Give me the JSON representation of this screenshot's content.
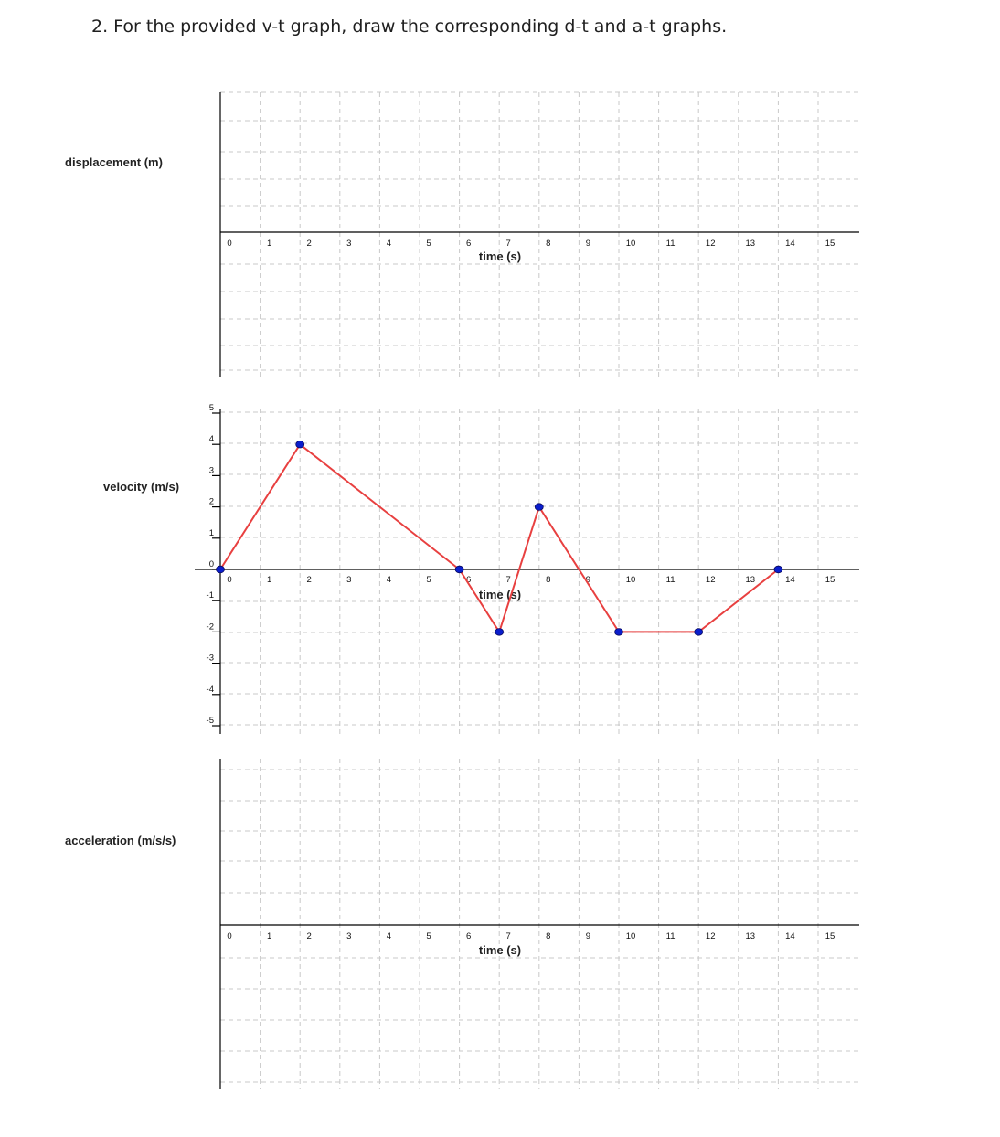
{
  "question": "2.   For the provided v-t graph, draw the corresponding d-t and a-t graphs.",
  "colors": {
    "line": "#e84040",
    "point": "#0a1ecc",
    "point_edge": "#0a0a60",
    "grid": "#c9c9c9",
    "axis": "#000000"
  },
  "chart_data": [
    {
      "type": "line",
      "title": "",
      "ylabel": "displacement (m)",
      "xlabel": "time (s)",
      "x_ticks": [
        "0",
        "1",
        "2",
        "3",
        "4",
        "5",
        "6",
        "7",
        "8",
        "9",
        "10",
        "11",
        "12",
        "13",
        "14",
        "15"
      ],
      "xlim": [
        0,
        15
      ],
      "y_ticks": [],
      "grid": true,
      "series": []
    },
    {
      "type": "line",
      "title": "",
      "ylabel": "velocity (m/s)",
      "xlabel": "time (s)",
      "x_ticks": [
        "0",
        "1",
        "2",
        "3",
        "4",
        "5",
        "6",
        "7",
        "8",
        "9",
        "10",
        "11",
        "12",
        "13",
        "14",
        "15"
      ],
      "xlim": [
        0,
        15
      ],
      "ylim": [
        -5,
        5
      ],
      "y_ticks": [
        "5",
        "4",
        "3",
        "2",
        "1",
        "0",
        "-1",
        "-2",
        "-3",
        "-4",
        "-5"
      ],
      "grid": true,
      "series": [
        {
          "x": [
            0,
            2,
            6,
            7,
            8,
            10,
            12,
            14
          ],
          "y": [
            0,
            4,
            0,
            -2,
            2,
            -2,
            -2,
            0
          ]
        }
      ]
    },
    {
      "type": "line",
      "title": "",
      "ylabel": "acceleration (m/s/s)",
      "xlabel": "time (s)",
      "x_ticks": [
        "0",
        "1",
        "2",
        "3",
        "4",
        "5",
        "6",
        "7",
        "8",
        "9",
        "10",
        "11",
        "12",
        "13",
        "14",
        "15"
      ],
      "xlim": [
        0,
        15
      ],
      "y_ticks": [],
      "grid": true,
      "series": []
    }
  ]
}
